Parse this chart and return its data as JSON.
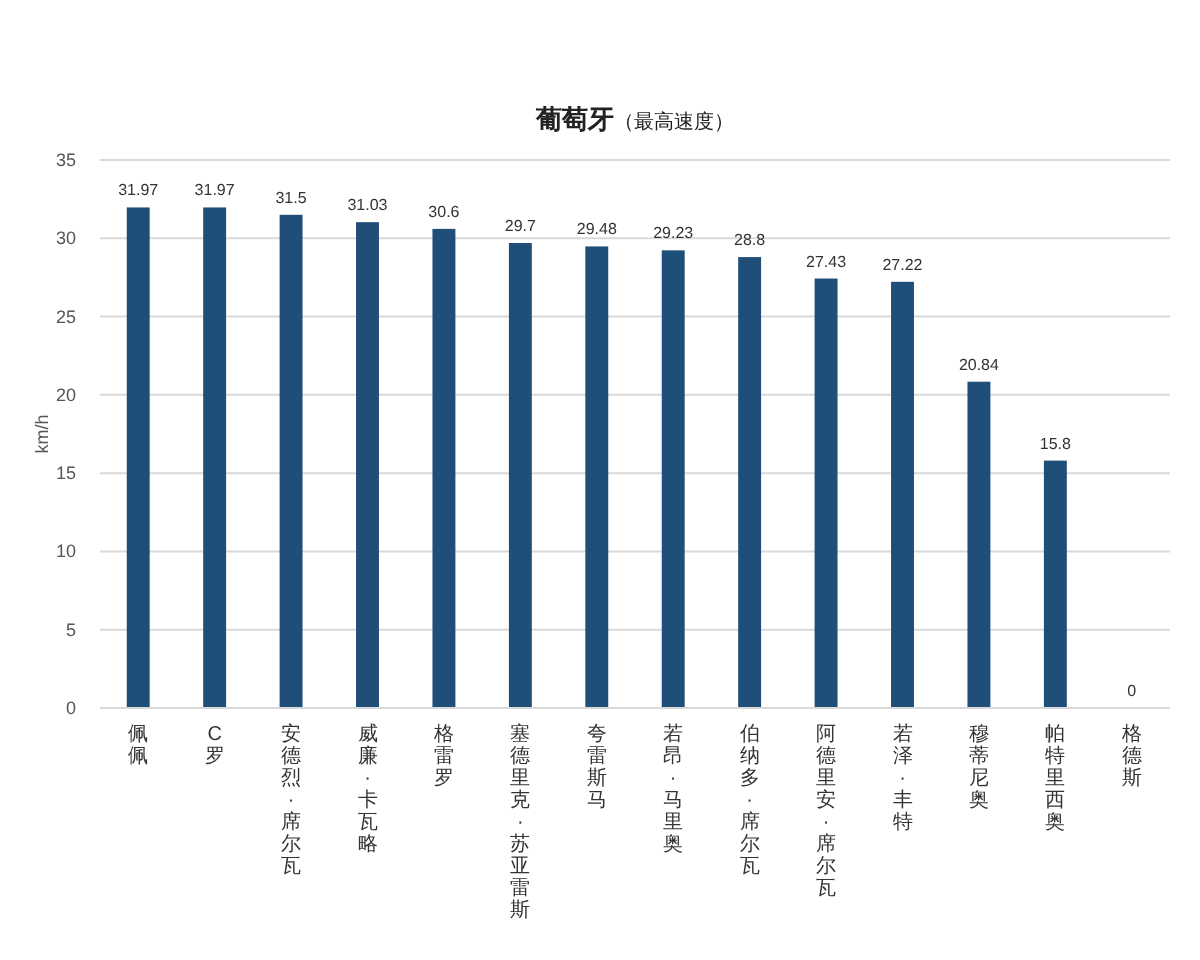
{
  "chart_data": {
    "type": "bar",
    "title": "葡萄牙",
    "subtitle": "（最高速度）",
    "ylabel": "km/h",
    "categories": [
      "佩佩",
      "C罗",
      "安德烈·席尔瓦",
      "威廉·卡瓦略",
      "格雷罗",
      "塞德里克·苏亚雷斯",
      "夸雷斯马",
      "若昂·马里奥",
      "伯纳多·席尔瓦",
      "阿德里安·席尔瓦",
      "若泽·丰特",
      "穆蒂尼奥",
      "帕特里西奥",
      "格德斯"
    ],
    "values": [
      31.97,
      31.97,
      31.5,
      31.03,
      30.6,
      29.7,
      29.48,
      29.23,
      28.8,
      27.43,
      27.22,
      20.84,
      15.8,
      0
    ],
    "color": "#1f4e79",
    "ylim": [
      0,
      35
    ],
    "yticks": [
      0,
      5,
      10,
      15,
      20,
      25,
      30,
      35
    ],
    "grid": "y",
    "data_labels": true
  }
}
